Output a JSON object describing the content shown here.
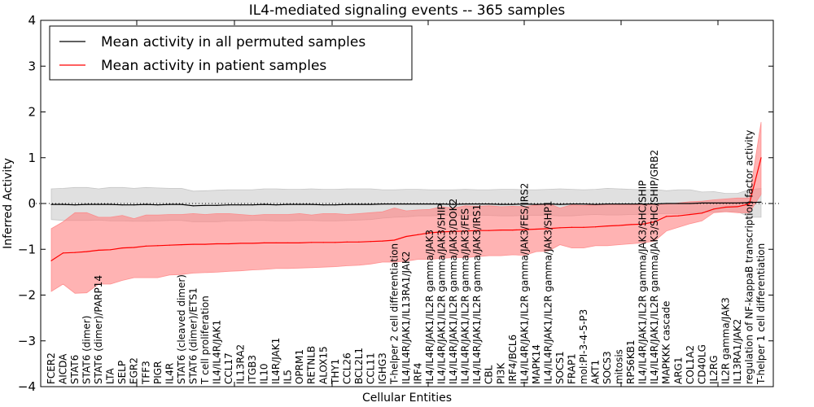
{
  "chart_data": {
    "type": "line",
    "title": "IL4-mediated signaling events -- 365 samples",
    "xlabel": "Cellular Entities",
    "ylabel": "Inferred Activity",
    "ylim": [
      -4,
      4
    ],
    "yticks": [
      -4,
      -3,
      -2,
      -1,
      0,
      1,
      2,
      3,
      4
    ],
    "ytick_labels": [
      "−4",
      "−3",
      "−2",
      "−1",
      "0",
      "1",
      "2",
      "3",
      "4"
    ],
    "grid": false,
    "legend_position": "top-left",
    "reference_line": 0,
    "categories": [
      "FCER2",
      "AICDA",
      "STAT6",
      "STAT6 (dimer)",
      "STAT6 (dimer)/PARP14",
      "LTA",
      "SELP",
      "EGR2",
      "TFF3",
      "PIGR",
      "IL4R",
      "STAT6 (cleaved dimer)",
      "STAT6 (dimer)/ETS1",
      "T cell proliferation",
      "IL4/IL4R/JAK1",
      "CCL17",
      "IL13RA2",
      "ITGB3",
      "IL10",
      "IL4R/JAK1",
      "IL5",
      "OPRM1",
      "RETNLB",
      "ALOX15",
      "THY1",
      "CCL26",
      "BCL2L1",
      "CCL11",
      "IGHG3",
      "T-helper 2 cell differentiation",
      "IL4/IL4R/JAK1/IL13RA1/JAK2",
      "IRF4",
      "IL4/IL4R/JAK1/IL2R gamma/JAK3",
      "IL4/IL4R/JAK1/IL2R gamma/JAK3/SHIP",
      "IL4/IL4R/JAK1/IL2R gamma/JAK3/DOK2",
      "IL4/IL4R/JAK1/IL2R gamma/JAK3/FES",
      "IL4/IL4R/JAK1/IL2R gamma/JAK3/IRS1",
      "CBL",
      "PI3K",
      "IRF4/BCL6",
      "IL4/IL4R/JAK1/IL2R gamma/JAK3/FES/IRS2",
      "MAPK14",
      "IL4/IL4R/JAK1/IL2R gamma/JAK3/SHP1",
      "SOCS1",
      "FRAP1",
      "mol:PI-3-4-5-P3",
      "AKT1",
      "SOCS3",
      "mitosis",
      "RPS6KB1",
      "IL4/IL4R/JAK1/IL2R gamma/JAK3/SHC/SHIP",
      "IL4/IL4R/JAK1/IL2R gamma/JAK3/SHC/SHIP/GRB2",
      "MAPKKK cascade",
      "ARG1",
      "COL1A2",
      "CD40LG",
      "IL2RG",
      "IL2R gamma/JAK3",
      "IL13RA1/JAK2",
      "regulation of NF-kappaB transcription factor activity",
      "T-helper 1 cell differentiation"
    ],
    "series": [
      {
        "name": "Mean activity in all permuted samples",
        "color": "#000000",
        "band_color": "#bbbbbb",
        "values": [
          -0.02,
          -0.02,
          -0.03,
          -0.02,
          -0.02,
          -0.02,
          -0.03,
          -0.03,
          -0.02,
          -0.03,
          -0.02,
          -0.02,
          -0.05,
          -0.04,
          -0.04,
          -0.03,
          -0.03,
          -0.03,
          -0.02,
          -0.03,
          -0.02,
          -0.02,
          -0.02,
          -0.03,
          -0.03,
          -0.02,
          -0.02,
          -0.02,
          -0.01,
          -0.01,
          -0.01,
          -0.01,
          -0.01,
          -0.01,
          -0.02,
          -0.01,
          -0.01,
          -0.01,
          -0.02,
          -0.02,
          -0.01,
          -0.02,
          -0.01,
          -0.02,
          -0.01,
          -0.01,
          -0.02,
          -0.01,
          -0.01,
          -0.01,
          -0.01,
          -0.01,
          0.0,
          0.0,
          0.0,
          0.01,
          0.01,
          0.01,
          0.01,
          0.02,
          0.03
        ],
        "upper": [
          0.32,
          0.33,
          0.35,
          0.35,
          0.32,
          0.35,
          0.35,
          0.33,
          0.35,
          0.34,
          0.33,
          0.33,
          0.27,
          0.28,
          0.29,
          0.3,
          0.3,
          0.3,
          0.32,
          0.32,
          0.31,
          0.31,
          0.32,
          0.31,
          0.31,
          0.32,
          0.32,
          0.32,
          0.3,
          0.3,
          0.31,
          0.31,
          0.3,
          0.3,
          0.3,
          0.31,
          0.3,
          0.3,
          0.31,
          0.31,
          0.3,
          0.3,
          0.31,
          0.32,
          0.31,
          0.3,
          0.31,
          0.33,
          0.32,
          0.31,
          0.3,
          0.31,
          0.28,
          0.3,
          0.3,
          0.25,
          0.26,
          0.22,
          0.22,
          0.3,
          0.33
        ],
        "lower": [
          -0.35,
          -0.37,
          -0.37,
          -0.37,
          -0.36,
          -0.38,
          -0.38,
          -0.39,
          -0.39,
          -0.38,
          -0.37,
          -0.37,
          -0.4,
          -0.4,
          -0.4,
          -0.38,
          -0.38,
          -0.37,
          -0.37,
          -0.38,
          -0.38,
          -0.37,
          -0.37,
          -0.38,
          -0.38,
          -0.37,
          -0.36,
          -0.35,
          -0.32,
          -0.3,
          -0.29,
          -0.27,
          -0.27,
          -0.26,
          -0.26,
          -0.27,
          -0.26,
          -0.26,
          -0.27,
          -0.27,
          -0.26,
          -0.26,
          -0.26,
          -0.27,
          -0.27,
          -0.25,
          -0.24,
          -0.25,
          -0.25,
          -0.24,
          -0.24,
          -0.23,
          -0.22,
          -0.22,
          -0.21,
          -0.19,
          -0.18,
          -0.18,
          -0.17,
          -0.3,
          -0.3
        ]
      },
      {
        "name": "Mean activity in patient samples",
        "color": "#ff0000",
        "band_color": "#ff8080",
        "values": [
          -1.25,
          -1.08,
          -1.07,
          -1.05,
          -1.02,
          -1.01,
          -0.97,
          -0.96,
          -0.93,
          -0.92,
          -0.91,
          -0.9,
          -0.89,
          -0.89,
          -0.88,
          -0.88,
          -0.87,
          -0.87,
          -0.86,
          -0.86,
          -0.86,
          -0.86,
          -0.85,
          -0.85,
          -0.85,
          -0.84,
          -0.84,
          -0.83,
          -0.82,
          -0.8,
          -0.72,
          -0.68,
          -0.64,
          -0.62,
          -0.61,
          -0.6,
          -0.59,
          -0.59,
          -0.58,
          -0.58,
          -0.57,
          -0.56,
          -0.55,
          -0.53,
          -0.52,
          -0.52,
          -0.51,
          -0.49,
          -0.48,
          -0.46,
          -0.45,
          -0.4,
          -0.28,
          -0.27,
          -0.24,
          -0.21,
          -0.12,
          -0.08,
          -0.07,
          -0.01,
          1.0
        ],
        "upper": [
          -0.55,
          -0.4,
          -0.2,
          -0.2,
          -0.3,
          -0.3,
          -0.26,
          -0.33,
          -0.25,
          -0.25,
          -0.24,
          -0.24,
          -0.22,
          -0.24,
          -0.22,
          -0.22,
          -0.24,
          -0.26,
          -0.24,
          -0.24,
          -0.24,
          -0.22,
          -0.25,
          -0.22,
          -0.22,
          -0.24,
          -0.22,
          -0.2,
          -0.18,
          -0.1,
          -0.16,
          -0.14,
          -0.13,
          -0.07,
          -0.1,
          -0.05,
          -0.06,
          -0.05,
          -0.07,
          -0.06,
          -0.07,
          -0.03,
          0.0,
          -0.1,
          -0.03,
          -0.04,
          -0.03,
          -0.02,
          -0.02,
          -0.02,
          -0.03,
          -0.02,
          -0.02,
          0.01,
          0.04,
          0.05,
          0.08,
          0.1,
          0.12,
          0.12,
          1.78
        ],
        "lower": [
          -1.92,
          -1.76,
          -1.96,
          -1.95,
          -1.76,
          -1.76,
          -1.68,
          -1.62,
          -1.62,
          -1.62,
          -1.56,
          -1.55,
          -1.52,
          -1.51,
          -1.5,
          -1.48,
          -1.47,
          -1.45,
          -1.44,
          -1.42,
          -1.42,
          -1.41,
          -1.4,
          -1.39,
          -1.38,
          -1.36,
          -1.35,
          -1.32,
          -1.28,
          -1.28,
          -1.26,
          -1.22,
          -1.22,
          -1.2,
          -1.18,
          -1.18,
          -1.16,
          -1.14,
          -1.14,
          -1.12,
          -1.13,
          -1.05,
          -1.04,
          -0.9,
          -0.97,
          -0.97,
          -0.92,
          -0.92,
          -0.9,
          -0.88,
          -0.86,
          -0.82,
          -0.6,
          -0.52,
          -0.44,
          -0.38,
          -0.2,
          -0.18,
          -0.2,
          -0.2,
          0.2
        ]
      }
    ]
  }
}
